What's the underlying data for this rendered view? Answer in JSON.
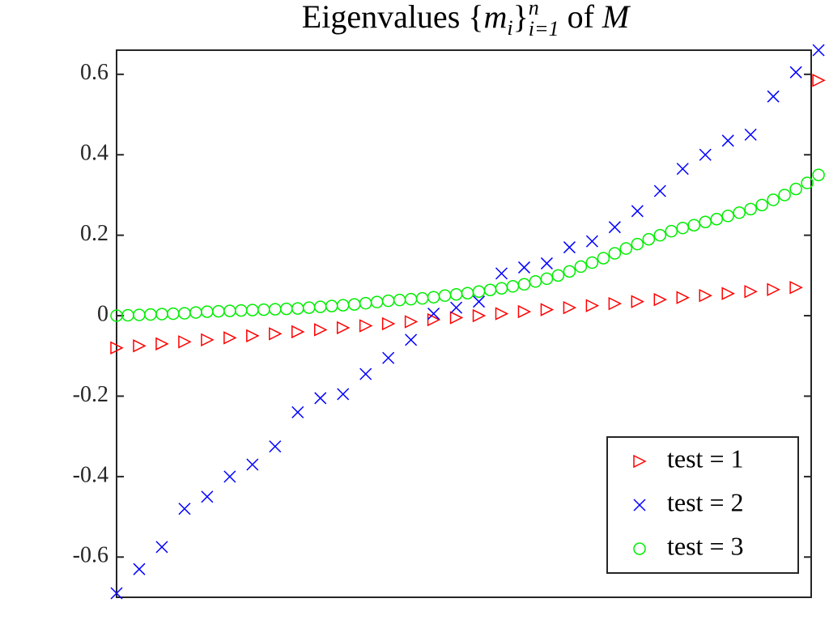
{
  "chart_data": {
    "type": "scatter",
    "title": [
      "Eigenvalues {",
      "m",
      "i",
      "}",
      "n",
      "i=1",
      " of ",
      "M"
    ],
    "xlim": [
      0,
      1
    ],
    "ylim": [
      -0.7,
      0.66
    ],
    "yticks": [
      -0.6,
      -0.4,
      -0.2,
      0,
      0.2,
      0.4,
      0.6
    ],
    "legend": "lower right",
    "series": [
      {
        "name": "test = 1",
        "color": "#ff0000",
        "marker": "triangle-right",
        "x": [
          0,
          0.0326,
          0.0652,
          0.0978,
          0.1304,
          0.163,
          0.1956,
          0.2282,
          0.2608,
          0.2934,
          0.326,
          0.3586,
          0.3912,
          0.4238,
          0.4564,
          0.489,
          0.5216,
          0.5542,
          0.5868,
          0.6194,
          0.652,
          0.6846,
          0.7172,
          0.7498,
          0.7824,
          0.815,
          0.8476,
          0.8802,
          0.9128,
          0.9454,
          0.978,
          1.0106
        ],
        "values": [
          -0.08,
          -0.075,
          -0.07,
          -0.065,
          -0.06,
          -0.055,
          -0.05,
          -0.045,
          -0.04,
          -0.035,
          -0.03,
          -0.025,
          -0.02,
          -0.015,
          -0.01,
          -0.005,
          0,
          0.005,
          0.01,
          0.015,
          0.02,
          0.025,
          0.03,
          0.035,
          0.04,
          0.045,
          0.05,
          0.055,
          0.06,
          0.065,
          0.07,
          0.585
        ]
      },
      {
        "name": "test = 2",
        "color": "#0000ff",
        "marker": "x",
        "x": [
          0,
          0.0326,
          0.0652,
          0.0978,
          0.1304,
          0.163,
          0.1956,
          0.2282,
          0.2608,
          0.2934,
          0.326,
          0.3586,
          0.3912,
          0.4238,
          0.4564,
          0.489,
          0.5216,
          0.5542,
          0.5868,
          0.6194,
          0.652,
          0.6846,
          0.7172,
          0.7498,
          0.7824,
          0.815,
          0.8476,
          0.8802,
          0.9128,
          0.9454,
          0.978,
          1.0106
        ],
        "values": [
          -0.69,
          -0.63,
          -0.575,
          -0.48,
          -0.45,
          -0.4,
          -0.37,
          -0.325,
          -0.24,
          -0.205,
          -0.195,
          -0.145,
          -0.105,
          -0.06,
          0.005,
          0.02,
          0.035,
          0.105,
          0.12,
          0.13,
          0.17,
          0.185,
          0.22,
          0.26,
          0.31,
          0.365,
          0.4,
          0.435,
          0.45,
          0.545,
          0.605,
          0.66
        ]
      },
      {
        "name": "test = 3",
        "color": "#00ee00",
        "marker": "circle",
        "x": [
          0,
          0.0163,
          0.0326,
          0.0489,
          0.0652,
          0.0815,
          0.0978,
          0.1141,
          0.1304,
          0.1467,
          0.163,
          0.1793,
          0.1956,
          0.2119,
          0.2282,
          0.2445,
          0.2608,
          0.2771,
          0.2934,
          0.3097,
          0.326,
          0.3423,
          0.3586,
          0.3749,
          0.3912,
          0.4075,
          0.4238,
          0.4401,
          0.4564,
          0.4727,
          0.489,
          0.5053,
          0.5216,
          0.5379,
          0.5542,
          0.5705,
          0.5868,
          0.6031,
          0.6194,
          0.6357,
          0.652,
          0.6683,
          0.6846,
          0.7009,
          0.7172,
          0.7335,
          0.7498,
          0.7661,
          0.7824,
          0.7987,
          0.815,
          0.8313,
          0.8476,
          0.8639,
          0.8802,
          0.8965,
          0.9128,
          0.9291,
          0.9454,
          0.9617,
          0.978,
          0.9943,
          1.0106
        ],
        "values": [
          0,
          0.001,
          0.002,
          0.003,
          0.004,
          0.005,
          0.006,
          0.008,
          0.01,
          0.011,
          0.012,
          0.013,
          0.014,
          0.015,
          0.016,
          0.017,
          0.018,
          0.02,
          0.022,
          0.024,
          0.026,
          0.028,
          0.031,
          0.034,
          0.037,
          0.039,
          0.041,
          0.043,
          0.046,
          0.05,
          0.053,
          0.056,
          0.06,
          0.064,
          0.068,
          0.073,
          0.078,
          0.085,
          0.092,
          0.1,
          0.11,
          0.122,
          0.132,
          0.143,
          0.155,
          0.167,
          0.178,
          0.19,
          0.2,
          0.21,
          0.218,
          0.225,
          0.233,
          0.24,
          0.248,
          0.256,
          0.265,
          0.275,
          0.288,
          0.3,
          0.315,
          0.33,
          0.35
        ]
      }
    ]
  }
}
